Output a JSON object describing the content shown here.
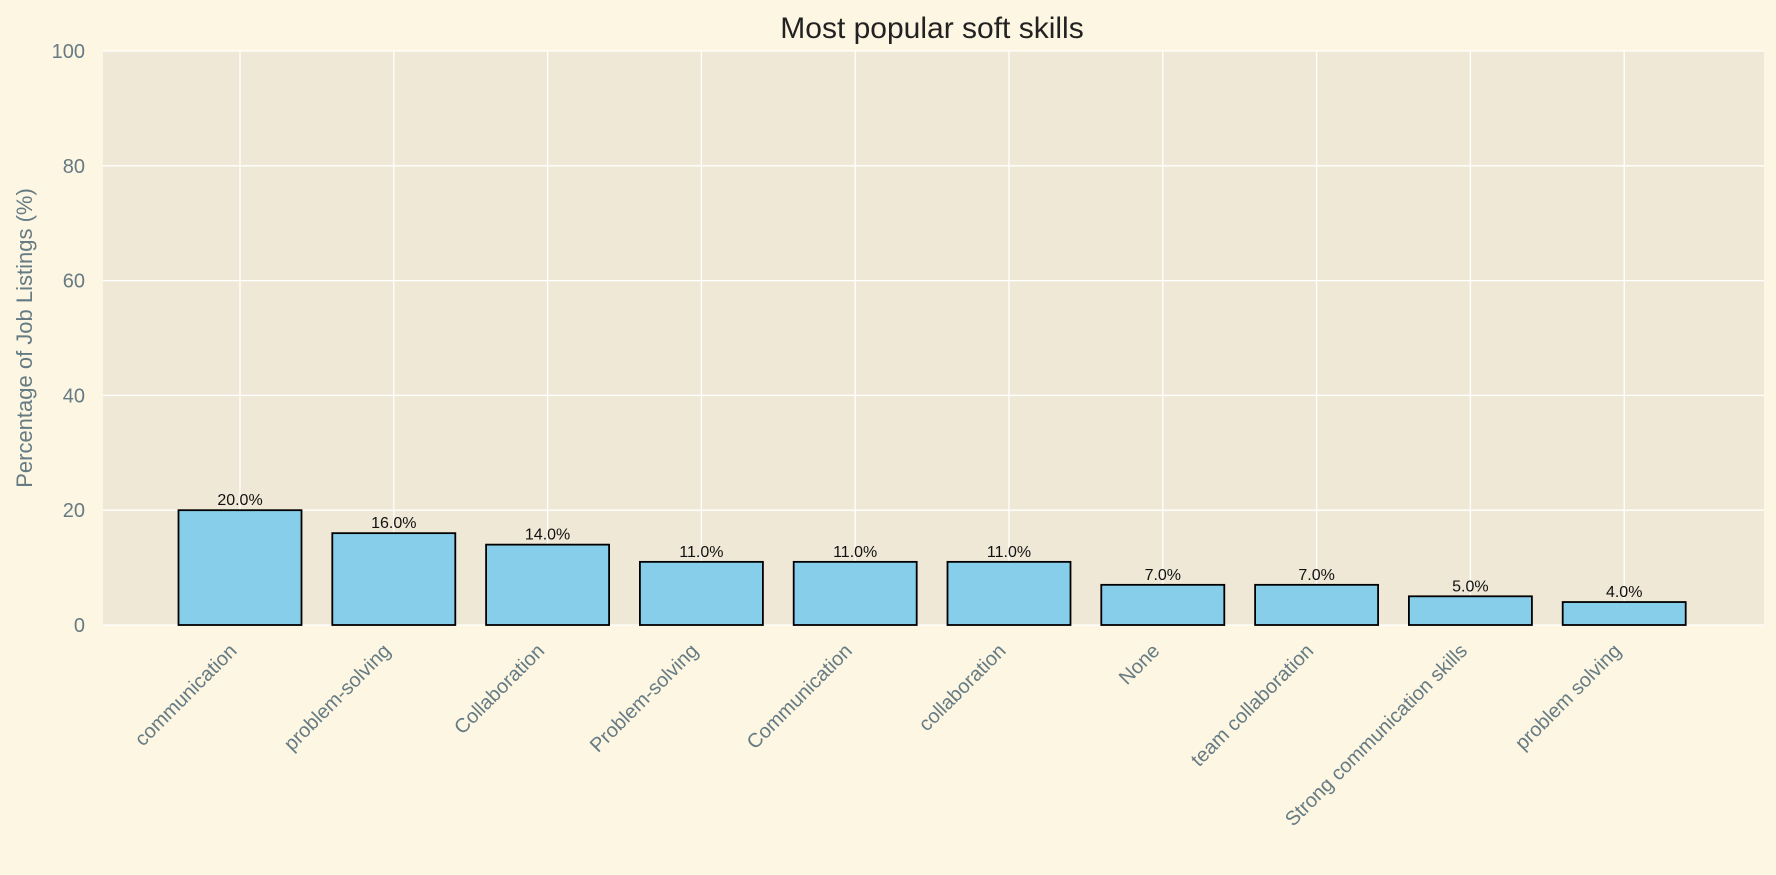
{
  "chart_data": {
    "type": "bar",
    "title": "Most popular soft skills",
    "xlabel": "",
    "ylabel": "Percentage of Job Listings (%)",
    "ylim": [
      0,
      100
    ],
    "yticks": [
      0,
      20,
      40,
      60,
      80,
      100
    ],
    "categories": [
      "communication",
      "problem-solving",
      "Collaboration",
      "Problem-solving",
      "Communication",
      "collaboration",
      "None",
      "team collaboration",
      "Strong communication skills",
      "problem solving"
    ],
    "values": [
      20.0,
      16.0,
      14.0,
      11.0,
      11.0,
      11.0,
      7.0,
      7.0,
      5.0,
      4.0
    ],
    "data_labels": [
      "20.0%",
      "16.0%",
      "14.0%",
      "11.0%",
      "11.0%",
      "11.0%",
      "7.0%",
      "7.0%",
      "5.0%",
      "4.0%"
    ],
    "grid": true,
    "colors": {
      "bar_fill": "#87ceeb",
      "bar_edge": "#000000",
      "plot_background": "#efe8d6",
      "figure_background": "#fdf6e3",
      "grid": "#ffffff",
      "tick_text": "#657b83",
      "title_text": "#222222"
    }
  }
}
